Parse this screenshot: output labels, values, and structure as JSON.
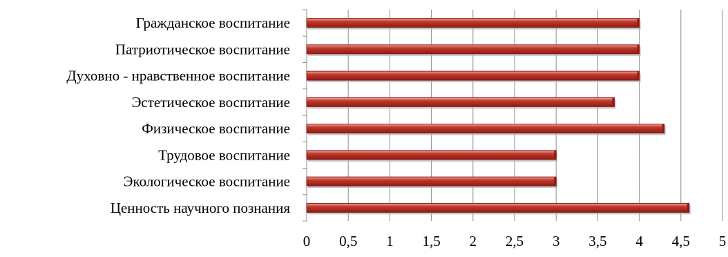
{
  "chart_data": {
    "type": "bar",
    "orientation": "horizontal",
    "title": "",
    "xlabel": "",
    "ylabel": "",
    "categories": [
      "Гражданское воспитание",
      "Патриотическое воспитание",
      "Духовно - нравственное воспитание",
      "Эстетическое воспитание",
      "Физическое воспитание",
      "Трудовое воспитание",
      "Экологическое воспитание",
      "Ценность научного познания"
    ],
    "values": [
      4,
      4,
      4,
      3.7,
      4.3,
      3,
      3,
      4.6
    ],
    "xlim": [
      0,
      5
    ],
    "xticks": [
      0,
      0.5,
      1,
      1.5,
      2,
      2.5,
      3,
      3.5,
      4,
      4.5,
      5
    ],
    "xtick_labels": [
      "0",
      "0,5",
      "1",
      "1,5",
      "2",
      "2,5",
      "3",
      "3,5",
      "4",
      "4,5",
      "5"
    ],
    "grid": true,
    "bar_color": "#c0392b",
    "bar_highlight_color": "#f3a5a0",
    "bar_dark_color": "#8e1b15"
  }
}
